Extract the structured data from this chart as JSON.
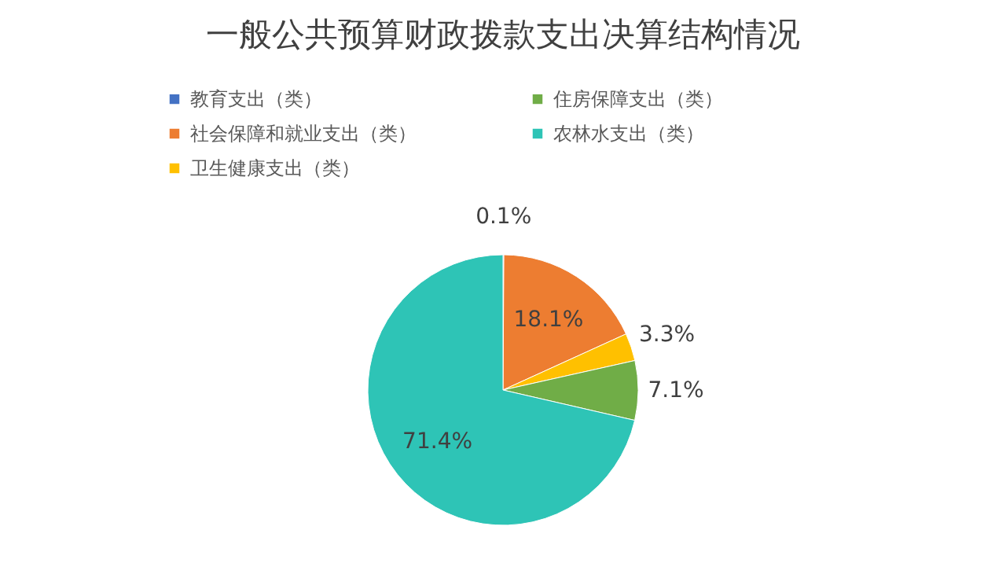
{
  "chart_data": {
    "type": "pie",
    "title": "一般公共预算财政拨款支出决算结构情况",
    "categories": [
      "教育支出（类）",
      "社会保障和就业支出（类）",
      "卫生健康支出（类）",
      "住房保障支出（类）",
      "农林水支出（类）"
    ],
    "values": [
      0.1,
      18.1,
      3.3,
      7.1,
      71.4
    ],
    "colors": [
      "#4472c4",
      "#ed7d31",
      "#ffc000",
      "#70ad47",
      "#2ec4b6"
    ],
    "value_labels": [
      "0.1%",
      "18.1%",
      "3.3%",
      "7.1%",
      "71.4%"
    ],
    "legend": "top"
  }
}
